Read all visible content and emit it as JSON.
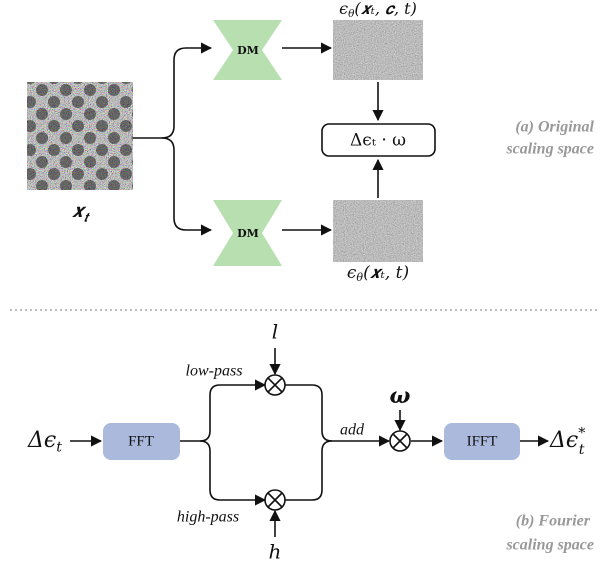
{
  "top_panel": {
    "model_upper": "DM",
    "model_lower": "DM",
    "output_conditional": {
      "symbol": "ϵ",
      "subscript": "θ",
      "argument": "(𝒙ₜ, 𝒄, t)"
    },
    "output_unconditional": {
      "symbol": "ϵ",
      "subscript": "θ",
      "argument": "(𝒙ₜ, t)"
    },
    "input_label": {
      "symbol": "𝒙",
      "subscript": "𝒕"
    },
    "difference_box": "Δϵₜ · ω",
    "caption": [
      "(a) Original",
      "scaling space"
    ]
  },
  "bottom_panel": {
    "input": {
      "symbol": "Δϵ",
      "subscript": "t"
    },
    "fft": "FFT",
    "low_weight": "l",
    "low_label": "low-pass",
    "high_weight": "h",
    "high_label": "high-pass",
    "add_label": "add",
    "scale": "ω",
    "ifft": "IFFT",
    "output": {
      "symbol": "Δϵ",
      "superscript": "*",
      "subscript": "t"
    },
    "caption": [
      "(b) Fourier",
      "scaling space"
    ]
  }
}
